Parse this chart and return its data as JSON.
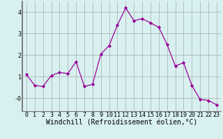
{
  "x": [
    0,
    1,
    2,
    3,
    4,
    5,
    6,
    7,
    8,
    9,
    10,
    11,
    12,
    13,
    14,
    15,
    16,
    17,
    18,
    19,
    20,
    21,
    22,
    23
  ],
  "y": [
    1.1,
    0.6,
    0.55,
    1.05,
    1.2,
    1.15,
    1.7,
    0.55,
    0.65,
    2.05,
    2.45,
    3.4,
    4.2,
    3.6,
    3.7,
    3.5,
    3.3,
    2.5,
    1.5,
    1.65,
    0.6,
    -0.05,
    -0.1,
    -0.3
  ],
  "line_color": "#990099",
  "marker": "D",
  "marker_size": 2.2,
  "background_color": "#d8f0f0",
  "grid_color": "#aaaaaa",
  "xlabel": "Windchill (Refroidissement éolien,°C)",
  "xlabel_fontsize": 7,
  "xlim": [
    -0.5,
    23.5
  ],
  "ylim": [
    -0.6,
    4.5
  ],
  "tick_fontsize": 6,
  "ytick_positions": [
    0,
    1,
    2,
    3,
    4
  ],
  "ytick_labels": [
    "-0",
    "1",
    "2",
    "3",
    "4"
  ],
  "spine_color": "#777777",
  "left_spine_color": "#666666"
}
